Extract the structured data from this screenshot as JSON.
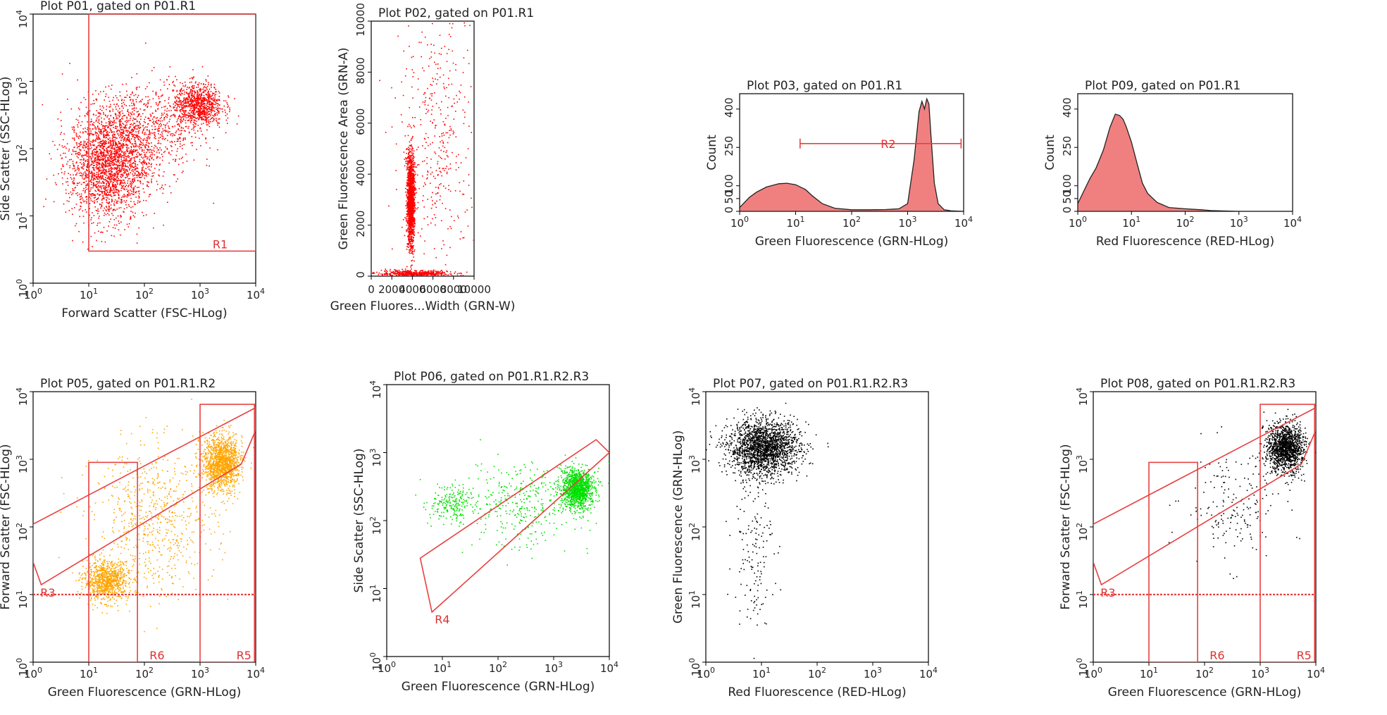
{
  "chart_data": [
    {
      "id": "P01",
      "type": "scatter",
      "scale": "log",
      "title": "Plot P01, gated on P01.R1",
      "xlabel": "Forward Scatter (FSC-HLog)",
      "ylabel": "Side Scatter (SSC-HLog)",
      "xlim": [
        1,
        10000
      ],
      "ylim": [
        1,
        10000
      ],
      "ticks": [
        "10^0",
        "10^1",
        "10^2",
        "10^3",
        "10^4"
      ],
      "color": "#ff0000",
      "populations": [
        {
          "cx": 22,
          "cy": 60,
          "n": 2200,
          "sx": 0.35,
          "sy": 0.42
        },
        {
          "cx": 900,
          "cy": 450,
          "n": 900,
          "sx": 0.22,
          "sy": 0.16
        },
        {
          "cx": 120,
          "cy": 180,
          "n": 700,
          "sx": 0.45,
          "sy": 0.35
        }
      ],
      "gates": [
        {
          "name": "R1",
          "kind": "rect",
          "x": [
            10,
            10000
          ],
          "y": [
            3,
            10000
          ],
          "label_at": [
            1500,
            3
          ]
        }
      ]
    },
    {
      "id": "P02",
      "type": "scatter",
      "scale": "linear",
      "title": "Plot P02, gated on P01.R1",
      "xlabel": "Green Fluores...Width (GRN-W)",
      "ylabel": "Green Fluorescence Area (GRN-A)",
      "xlim": [
        0,
        10000
      ],
      "ylim": [
        0,
        10000
      ],
      "xticks": [
        0,
        2000,
        4000,
        6000,
        8000,
        10000
      ],
      "yticks": [
        0,
        2000,
        4000,
        6000,
        8000,
        10000
      ],
      "color": "#ff0000",
      "populations": [
        {
          "cx": 3800,
          "cy": 3000,
          "n": 1600,
          "sx": 180,
          "sy": 900
        },
        {
          "cx": 4000,
          "cy": 120,
          "n": 500,
          "sx": 1800,
          "sy": 60
        },
        {
          "cx": 6500,
          "cy": 5500,
          "n": 400,
          "sx": 1900,
          "sy": 2500
        }
      ],
      "gates": []
    },
    {
      "id": "P03",
      "type": "area",
      "scale": "log",
      "title": "Plot P03, gated on P01.R1",
      "xlabel": "Green Fluorescence (GRN-HLog)",
      "ylabel": "Count",
      "xlim": [
        1,
        10000
      ],
      "ylim": [
        0,
        460
      ],
      "ticks": [
        "10^0",
        "10^1",
        "10^2",
        "10^3",
        "10^4"
      ],
      "yticks": [
        0,
        50,
        100,
        250,
        400
      ],
      "color": "#f08080",
      "x": [
        1,
        1.5,
        2,
        3,
        5,
        7,
        10,
        15,
        20,
        30,
        50,
        100,
        200,
        400,
        700,
        1000,
        1300,
        1600,
        1800,
        2000,
        2200,
        2400,
        2600,
        3000,
        3500,
        4500,
        6000,
        10000
      ],
      "y": [
        15,
        55,
        75,
        95,
        108,
        110,
        104,
        85,
        60,
        30,
        12,
        6,
        6,
        7,
        10,
        30,
        200,
        390,
        430,
        400,
        440,
        420,
        300,
        110,
        30,
        6,
        2,
        0
      ],
      "gates": [
        {
          "name": "R2",
          "kind": "bar",
          "x": [
            12,
            9000
          ],
          "y": 265,
          "label_at": 330
        }
      ]
    },
    {
      "id": "P09",
      "type": "area",
      "scale": "log",
      "title": "Plot P09, gated on P01.R1",
      "xlabel": "Red Fluorescence (RED-HLog)",
      "ylabel": "Count",
      "xlim": [
        1,
        10000
      ],
      "ylim": [
        0,
        460
      ],
      "ticks": [
        "10^0",
        "10^1",
        "10^2",
        "10^3",
        "10^4"
      ],
      "yticks": [
        0,
        50,
        100,
        250,
        400
      ],
      "color": "#f08080",
      "x": [
        1,
        1.3,
        1.7,
        2.2,
        3,
        4,
        5,
        6,
        7,
        8,
        10,
        13,
        16,
        20,
        30,
        50,
        100,
        200,
        300,
        1000,
        10000
      ],
      "y": [
        30,
        80,
        130,
        170,
        240,
        330,
        380,
        375,
        360,
        330,
        270,
        180,
        110,
        70,
        35,
        15,
        10,
        6,
        3,
        0,
        0
      ],
      "gates": []
    },
    {
      "id": "P05",
      "type": "scatter",
      "scale": "log",
      "title": "Plot P05, gated on P01.R1.R2",
      "xlabel": "Green Fluorescence (GRN-HLog)",
      "ylabel": "Forward Scatter (FSC-HLog)",
      "xlim": [
        1,
        10000
      ],
      "ylim": [
        1,
        10000
      ],
      "ticks": [
        "10^0",
        "10^1",
        "10^2",
        "10^3",
        "10^4"
      ],
      "color": "#ffa500",
      "populations": [
        {
          "cx": 2400,
          "cy": 900,
          "n": 1400,
          "sx": 0.16,
          "sy": 0.2
        },
        {
          "cx": 20,
          "cy": 16,
          "n": 900,
          "sx": 0.2,
          "sy": 0.14
        },
        {
          "cx": 150,
          "cy": 120,
          "n": 700,
          "sx": 0.55,
          "sy": 0.55
        }
      ],
      "gates": [
        {
          "name": "R3",
          "kind": "poly",
          "points": [
            [
              1,
              30
            ],
            [
              1.4,
              14
            ],
            [
              5500,
              850
            ],
            [
              10000,
              2700
            ],
            [
              10000,
              5800
            ],
            [
              1,
              110
            ]
          ],
          "label_at": [
            1.2,
            8.5
          ]
        },
        {
          "name": "R6",
          "kind": "rect",
          "x": [
            10,
            75
          ],
          "y": [
            1,
            900
          ],
          "label_at": [
            110,
            1
          ]
        },
        {
          "name": "R5",
          "kind": "rect",
          "x": [
            1000,
            9500
          ],
          "y": [
            1,
            6500
          ],
          "label_at": [
            4000,
            1
          ]
        },
        {
          "name": "R3-line",
          "kind": "hline",
          "y": 10,
          "label_at": null
        }
      ]
    },
    {
      "id": "P06",
      "type": "scatter",
      "scale": "log",
      "title": "Plot P06, gated on P01.R1.R2.R3",
      "xlabel": "Green Fluorescence (GRN-HLog)",
      "ylabel": "Side Scatter (SSC-HLog)",
      "xlim": [
        1,
        10000
      ],
      "ylim": [
        1,
        10000
      ],
      "ticks": [
        "10^0",
        "10^1",
        "10^2",
        "10^3",
        "10^4"
      ],
      "color": "#00e000",
      "populations": [
        {
          "cx": 2600,
          "cy": 300,
          "n": 1200,
          "sx": 0.14,
          "sy": 0.14
        },
        {
          "cx": 15,
          "cy": 180,
          "n": 200,
          "sx": 0.2,
          "sy": 0.14
        },
        {
          "cx": 300,
          "cy": 180,
          "n": 400,
          "sx": 0.6,
          "sy": 0.3
        }
      ],
      "gates": [
        {
          "name": "R4",
          "kind": "poly",
          "points": [
            [
              4,
              28
            ],
            [
              6.5,
              4.5
            ],
            [
              10000,
              1000
            ],
            [
              5800,
              1550
            ]
          ],
          "label_at": [
            6.5,
            2.8
          ]
        }
      ]
    },
    {
      "id": "P07",
      "type": "scatter",
      "scale": "log",
      "title": "Plot P07, gated on P01.R1.R2.R3",
      "xlabel": "Red Fluorescence (RED-HLog)",
      "ylabel": "Green Fluorescence (GRN-HLog)",
      "xlim": [
        1,
        10000
      ],
      "ylim": [
        1,
        10000
      ],
      "ticks": [
        "10^0",
        "10^1",
        "10^2",
        "10^3",
        "10^4"
      ],
      "color": "#000000",
      "populations": [
        {
          "cx": 11,
          "cy": 1500,
          "n": 2000,
          "sx": 0.32,
          "sy": 0.2
        },
        {
          "cx": 7,
          "cy": 60,
          "n": 150,
          "sx": 0.18,
          "sy": 0.6
        }
      ],
      "gates": []
    },
    {
      "id": "P08",
      "type": "scatter",
      "scale": "log",
      "title": "Plot P08, gated on P01.R1.R2.R3",
      "xlabel": "Green Fluorescence (GRN-HLog)",
      "ylabel": "Forward Scatter (FSC-HLog)",
      "xlim": [
        1,
        10000
      ],
      "ylim": [
        1,
        10000
      ],
      "ticks": [
        "10^0",
        "10^1",
        "10^2",
        "10^3",
        "10^4"
      ],
      "color": "#000000",
      "populations": [
        {
          "cx": 2800,
          "cy": 1500,
          "n": 1400,
          "sx": 0.16,
          "sy": 0.18
        },
        {
          "cx": 300,
          "cy": 200,
          "n": 180,
          "sx": 0.45,
          "sy": 0.4
        }
      ],
      "gates": [
        {
          "name": "R3",
          "kind": "poly",
          "points": [
            [
              1,
              30
            ],
            [
              1.4,
              14
            ],
            [
              5500,
              850
            ],
            [
              10000,
              2700
            ],
            [
              10000,
              5800
            ],
            [
              1,
              110
            ]
          ],
          "label_at": [
            1.2,
            8.5
          ]
        },
        {
          "name": "R6",
          "kind": "rect",
          "x": [
            10,
            75
          ],
          "y": [
            1,
            900
          ],
          "label_at": [
            110,
            1
          ]
        },
        {
          "name": "R5",
          "kind": "rect",
          "x": [
            1000,
            9500
          ],
          "y": [
            1,
            6500
          ],
          "label_at": [
            4000,
            1
          ]
        },
        {
          "name": "R3-line",
          "kind": "hline",
          "y": 10,
          "label_at": null
        }
      ]
    }
  ]
}
